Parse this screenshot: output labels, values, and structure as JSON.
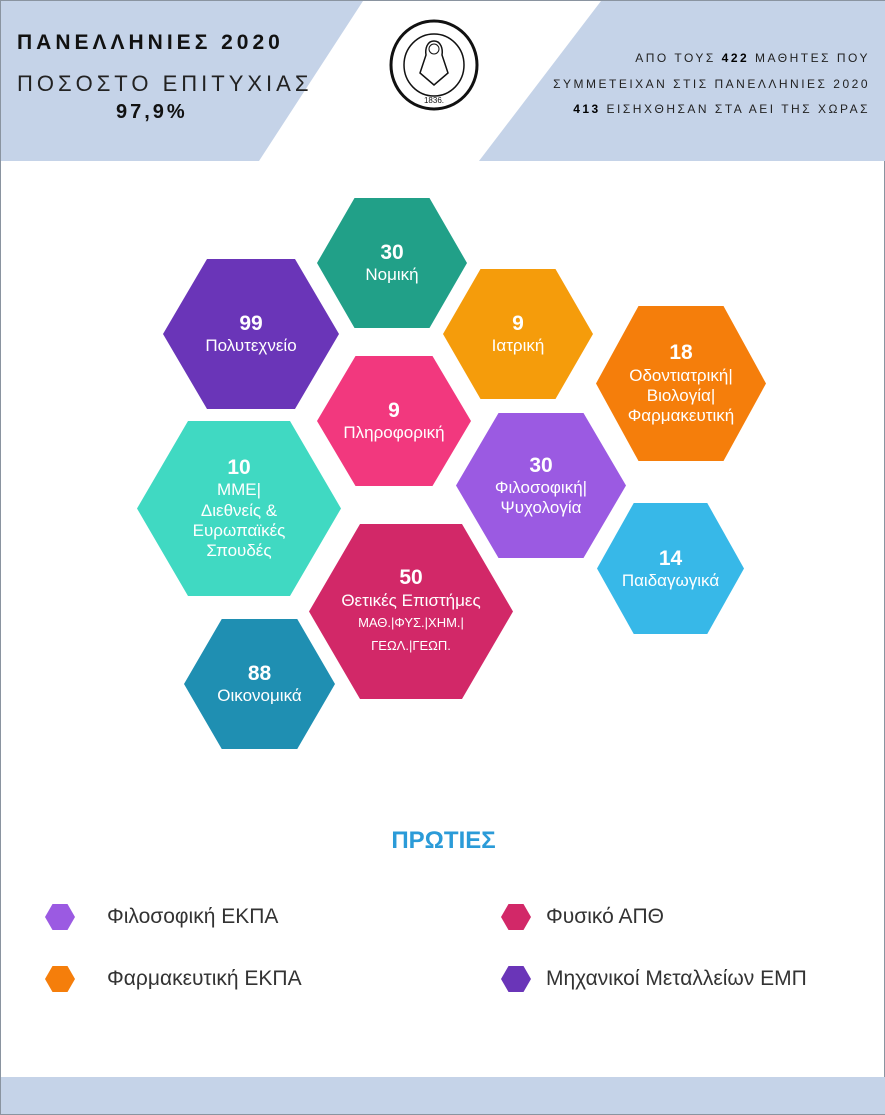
{
  "header": {
    "title": "ΠΑΝΕΛΛΗΝΙΕΣ 2020",
    "rate_label": "ΠΟΣΟΣΤΟ ΕΠΙΤΥΧΙΑΣ",
    "rate_value": "97,9%",
    "line1_pre": "ΑΠΟ ΤΟΥΣ ",
    "line1_num": "422",
    "line1_post": " ΜΑΘΗΤΕΣ ΠΟΥ",
    "line2": "ΣΥΜΜΕΤΕΙΧΑΝ ΣΤΙΣ ΠΑΝΕΛΛΗΝΙΕΣ 2020",
    "line3_num": "413",
    "line3_post": " ΕΙΣΗΧΘΗΣΑΝ ΣΤΑ ΑΕΙ ΤΗΣ ΧΩΡΑΣ",
    "logo_text": "Η ΕΝ ΑΘΗΝΑΙΣ ΦΙΛΕΚΠΑΙΔΕΥΤΙΚΗ ΕΤΑΙΡΕΙΑ 1836",
    "bg_color": "#c5d3e8"
  },
  "hexes": [
    {
      "count": "30",
      "label": "Νομική",
      "color": "#21a088"
    },
    {
      "count": "99",
      "label": "Πολυτεχνείο",
      "color": "#6a35b8"
    },
    {
      "count": "9",
      "label": "Ιατρική",
      "color": "#f59c0b"
    },
    {
      "count": "18",
      "label": "Οδοντιατρική| Βιολογία| Φαρμακευτική",
      "color": "#f57e0b"
    },
    {
      "count": "9",
      "label": "Πληροφορική",
      "color": "#f2387e"
    },
    {
      "count": "10",
      "label": "ΜΜΕ| Διεθνείς & Ευρωπαϊκές Σπουδές",
      "color": "#40d9c2"
    },
    {
      "count": "30",
      "label": "Φιλοσοφική| Ψυχολογία",
      "color": "#9b5ae2"
    },
    {
      "count": "14",
      "label": "Παιδαγωγικά",
      "color": "#37b8e8"
    },
    {
      "count": "50",
      "label": "Θετικές Επιστήμες",
      "sub1": "ΜΑΘ.|ΦΥΣ.|ΧΗΜ.|",
      "sub2": "ΓΕΩΛ.|ΓΕΩΠ.",
      "color": "#d22868"
    },
    {
      "count": "88",
      "label": "Οικονομικά",
      "color": "#1f8fb2"
    }
  ],
  "firsts": {
    "title": "ΠΡΩΤΙΕΣ",
    "items": [
      {
        "label": "Φιλοσοφική ΕΚΠΑ",
        "color": "#9b5ae2"
      },
      {
        "label": "Φαρμακευτική ΕΚΠΑ",
        "color": "#f57e0b"
      },
      {
        "label": "Φυσικό ΑΠΘ",
        "color": "#d22868"
      },
      {
        "label": "Μηχανικοί Μεταλλείων ΕΜΠ",
        "color": "#6a35b8"
      }
    ]
  }
}
